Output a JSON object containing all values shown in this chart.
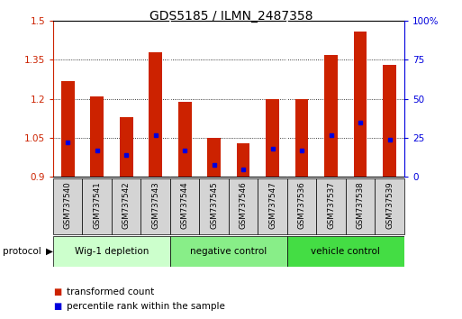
{
  "title": "GDS5185 / ILMN_2487358",
  "samples": [
    "GSM737540",
    "GSM737541",
    "GSM737542",
    "GSM737543",
    "GSM737544",
    "GSM737545",
    "GSM737546",
    "GSM737547",
    "GSM737536",
    "GSM737537",
    "GSM737538",
    "GSM737539"
  ],
  "transformed_count": [
    1.27,
    1.21,
    1.13,
    1.38,
    1.19,
    1.05,
    1.03,
    1.2,
    1.2,
    1.37,
    1.46,
    1.33
  ],
  "percentile_rank": [
    22,
    17,
    14,
    27,
    17,
    8,
    5,
    18,
    17,
    27,
    35,
    24
  ],
  "groups": [
    {
      "label": "Wig-1 depletion",
      "start": 0,
      "end": 3,
      "color": "#ccffcc"
    },
    {
      "label": "negative control",
      "start": 4,
      "end": 7,
      "color": "#88ee88"
    },
    {
      "label": "vehicle control",
      "start": 8,
      "end": 11,
      "color": "#44dd44"
    }
  ],
  "bar_color": "#cc2200",
  "dot_color": "#0000dd",
  "ylim_left": [
    0.9,
    1.5
  ],
  "ylim_right": [
    0,
    100
  ],
  "yticks_left": [
    0.9,
    1.05,
    1.2,
    1.35,
    1.5
  ],
  "yticks_right": [
    0,
    25,
    50,
    75,
    100
  ],
  "ytick_labels_right": [
    "0",
    "25",
    "50",
    "75",
    "100%"
  ],
  "bar_width": 0.45,
  "background_color": "#ffffff",
  "plot_bg_color": "#ffffff",
  "sample_box_color": "#d4d4d4",
  "legend_items": [
    {
      "label": "transformed count",
      "color": "#cc2200"
    },
    {
      "label": "percentile rank within the sample",
      "color": "#0000dd"
    }
  ]
}
